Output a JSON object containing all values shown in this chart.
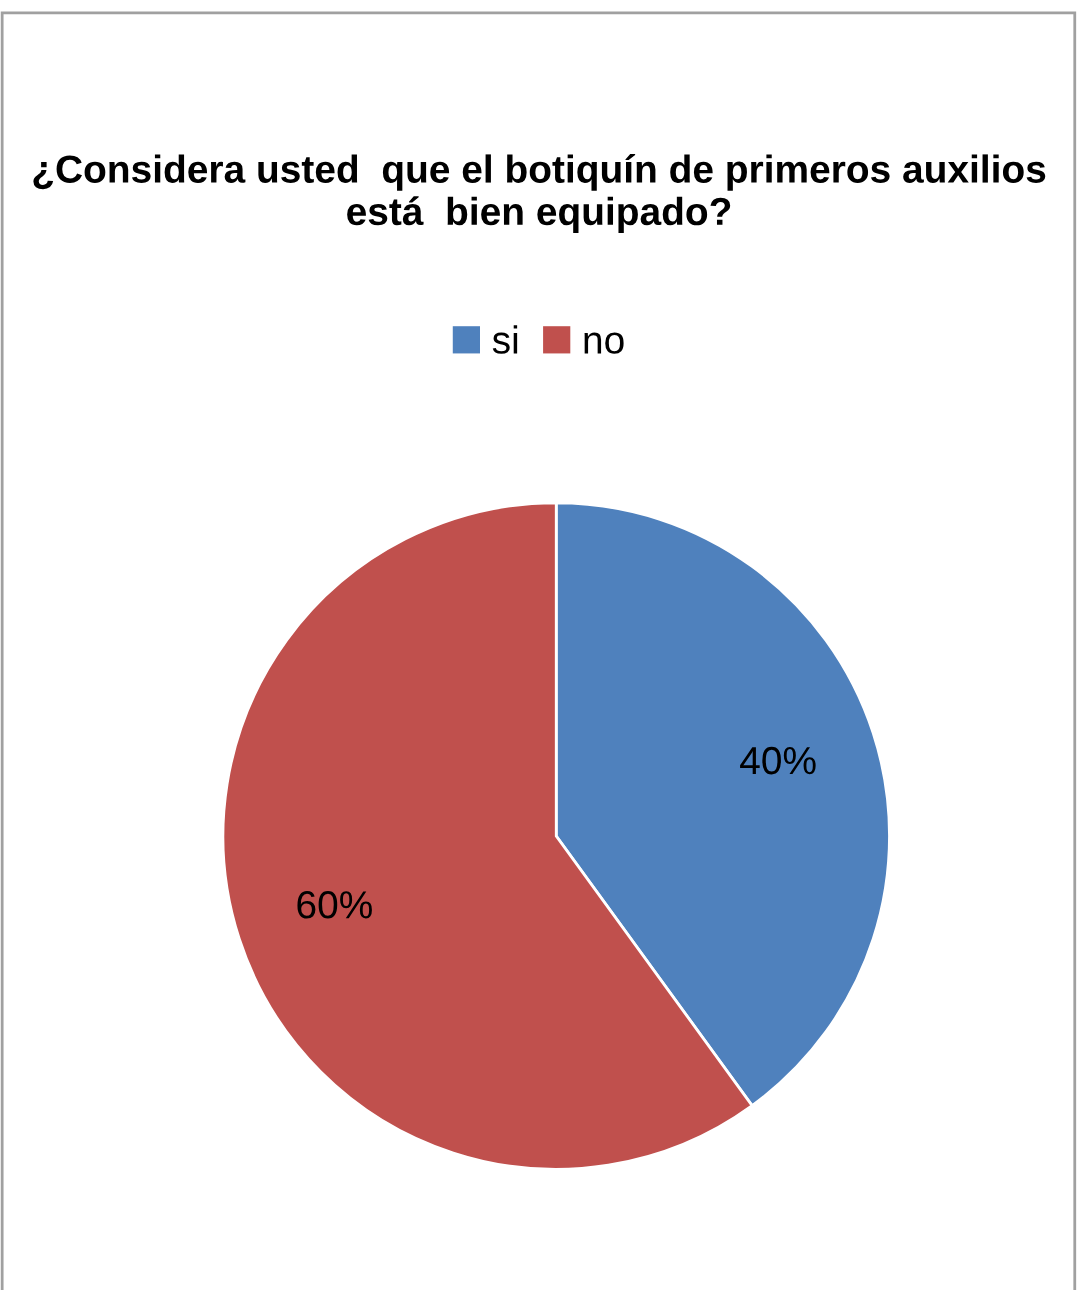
{
  "chart_data": {
    "type": "pie",
    "title": "¿Considera usted  que el botiquín de primeros auxilios está  bien equipado?",
    "categories": [
      "si",
      "no"
    ],
    "values": [
      40,
      60
    ],
    "colors": [
      "#4f81bd",
      "#c0504d"
    ],
    "value_labels": [
      "40%",
      "60%"
    ],
    "legend": "top"
  }
}
